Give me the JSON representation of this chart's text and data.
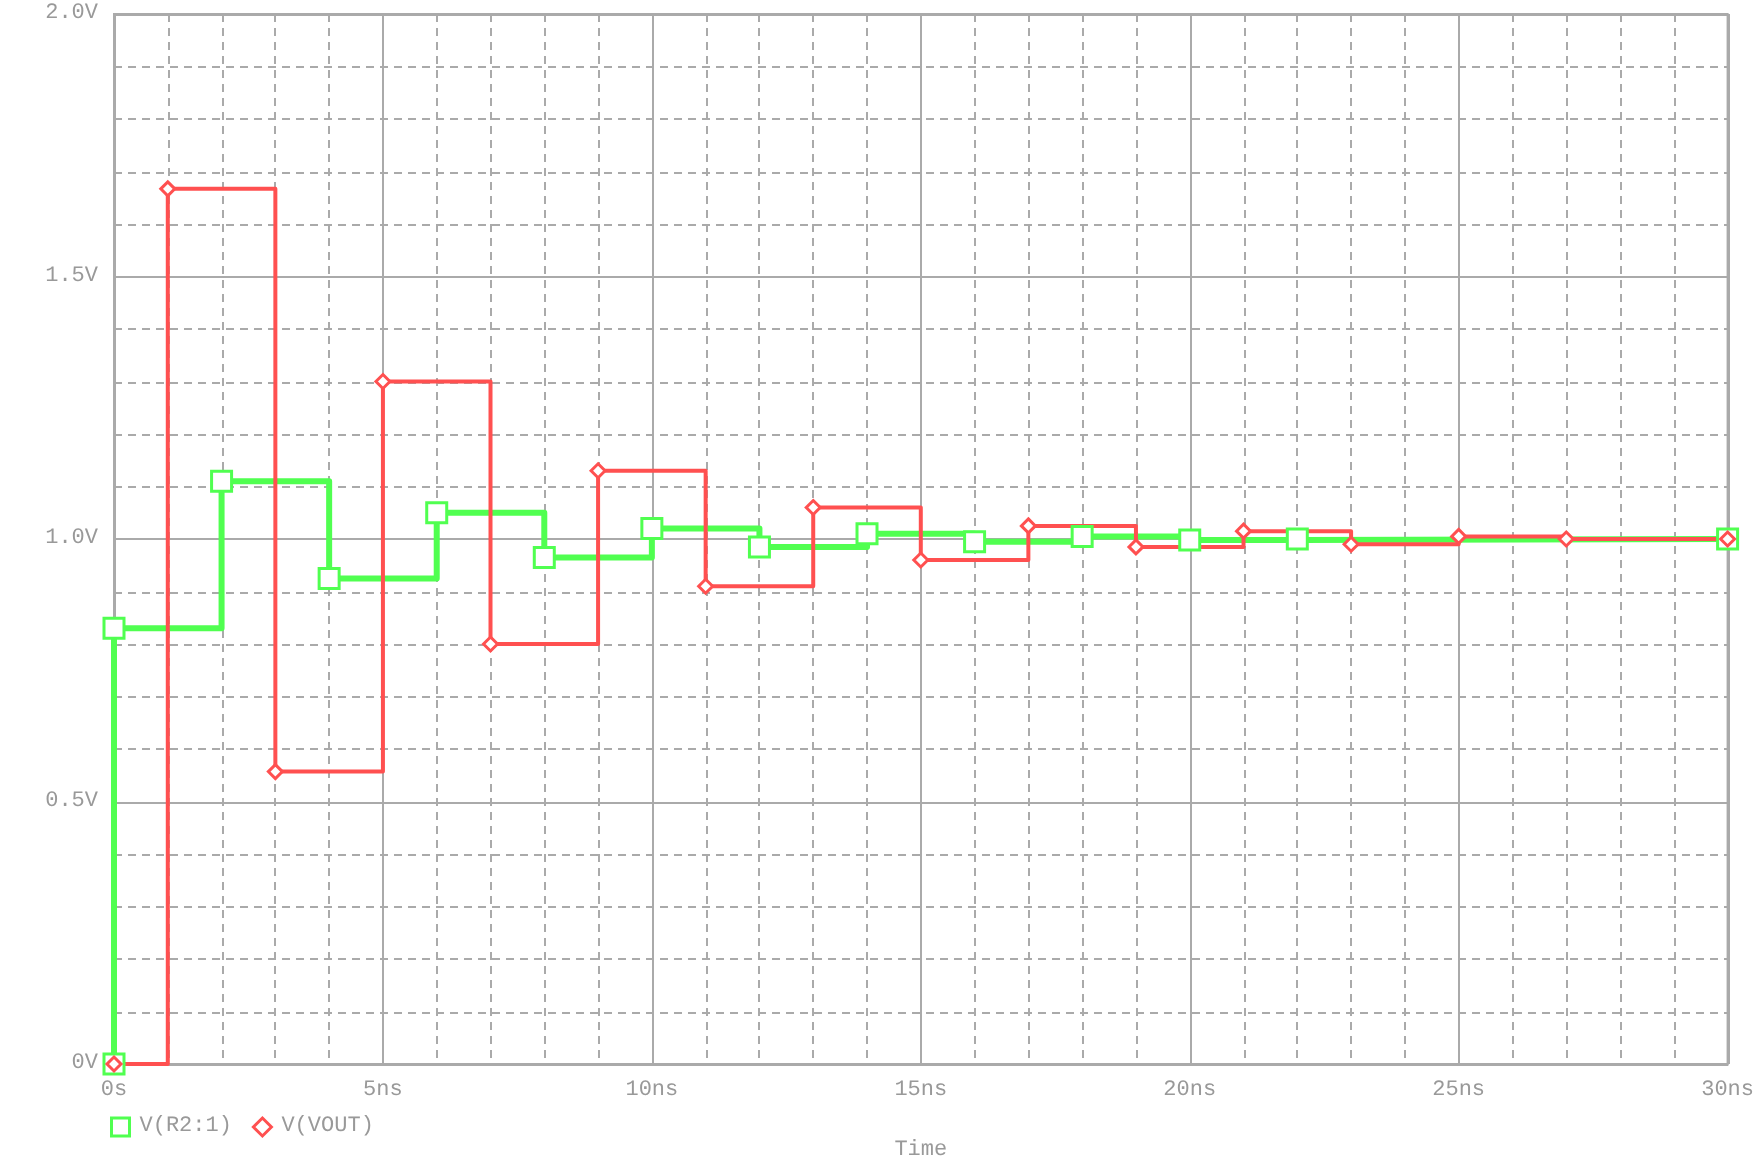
{
  "chart_data": {
    "type": "step",
    "xlabel": "Time",
    "xlim": [
      0,
      30
    ],
    "xticks": [
      {
        "value": 0,
        "label": "0s"
      },
      {
        "value": 5,
        "label": "5ns"
      },
      {
        "value": 10,
        "label": "10ns"
      },
      {
        "value": 15,
        "label": "15ns"
      },
      {
        "value": 20,
        "label": "20ns"
      },
      {
        "value": 25,
        "label": "25ns"
      },
      {
        "value": 30,
        "label": "30ns"
      }
    ],
    "ylim": [
      0,
      2
    ],
    "yticks": [
      {
        "value": 0,
        "label": "0V"
      },
      {
        "value": 0.5,
        "label": "0.5V"
      },
      {
        "value": 1,
        "label": "1.0V"
      },
      {
        "value": 1.5,
        "label": "1.5V"
      },
      {
        "value": 2,
        "label": "2.0V"
      }
    ],
    "grid": true,
    "legend": "bottom left",
    "line_style": "solid",
    "series": [
      {
        "name": "V(R2:1)",
        "color": "#50ff50",
        "marker": "square",
        "x": [
          0,
          0,
          2,
          4,
          6,
          8,
          10,
          12,
          14,
          16,
          18,
          20,
          22,
          30
        ],
        "values": [
          0,
          0.83,
          1.11,
          0.925,
          1.05,
          0.965,
          1.02,
          0.985,
          1.01,
          0.995,
          1.005,
          0.998,
          1.0,
          1.0
        ]
      },
      {
        "name": "V(VOUT)",
        "color": "#ff5050",
        "marker": "diamond",
        "x": [
          0,
          1,
          3,
          5,
          7,
          9,
          11,
          13,
          15,
          17,
          19,
          21,
          23,
          25,
          27,
          30
        ],
        "values": [
          0,
          1.667,
          0.557,
          1.3,
          0.8,
          1.13,
          0.91,
          1.06,
          0.96,
          1.025,
          0.985,
          1.015,
          0.99,
          1.005,
          1.0,
          1.0
        ]
      }
    ]
  }
}
